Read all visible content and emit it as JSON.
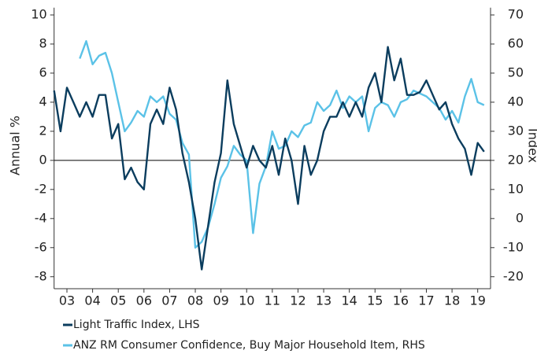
{
  "chart_data": {
    "type": "line",
    "ylabel": "Annual %",
    "y2label": "Index",
    "xlim": [
      3,
      20
    ],
    "xticks": [
      {
        "value": 3.5,
        "label": "03"
      },
      {
        "value": 4.5,
        "label": "04"
      },
      {
        "value": 5.5,
        "label": "05"
      },
      {
        "value": 6.5,
        "label": "06"
      },
      {
        "value": 7.5,
        "label": "07"
      },
      {
        "value": 8.5,
        "label": "08"
      },
      {
        "value": 9.5,
        "label": "09"
      },
      {
        "value": 10.5,
        "label": "10"
      },
      {
        "value": 11.5,
        "label": "11"
      },
      {
        "value": 12.5,
        "label": "12"
      },
      {
        "value": 13.5,
        "label": "13"
      },
      {
        "value": 14.5,
        "label": "14"
      },
      {
        "value": 15.5,
        "label": "15"
      },
      {
        "value": 16.5,
        "label": "16"
      },
      {
        "value": 17.5,
        "label": "17"
      },
      {
        "value": 18.5,
        "label": "18"
      },
      {
        "value": 19.5,
        "label": "19"
      }
    ],
    "ylim": [
      -8.5,
      10.5
    ],
    "yticks": [
      -8,
      -6,
      -4,
      -2,
      0,
      2,
      4,
      6,
      8,
      10
    ],
    "y2lim": [
      -22.5,
      72.5
    ],
    "y2ticks": [
      -20,
      -10,
      0,
      10,
      20,
      30,
      40,
      50,
      60,
      70
    ],
    "series": [
      {
        "name": "Light Traffic Index, LHS",
        "color": "#0b3d5e",
        "x": [
          3,
          3.25,
          3.5,
          3.75,
          4,
          4.25,
          4.5,
          4.75,
          5,
          5.25,
          5.5,
          5.75,
          6,
          6.25,
          6.5,
          6.75,
          7,
          7.25,
          7.5,
          7.75,
          8,
          8.25,
          8.5,
          8.75,
          9,
          9.25,
          9.5,
          9.75,
          10,
          10.25,
          10.5,
          10.75,
          11,
          11.25,
          11.5,
          11.75,
          12,
          12.25,
          12.5,
          12.75,
          13,
          13.25,
          13.5,
          13.75,
          14,
          14.25,
          14.5,
          14.75,
          15,
          15.25,
          15.5,
          15.75,
          16,
          16.25,
          16.5,
          16.75,
          17,
          17.25,
          17.5,
          17.75,
          18,
          18.25,
          18.5,
          18.75,
          19,
          19.25,
          19.5,
          19.75
        ],
        "values": [
          4.8,
          2.0,
          5.0,
          4.0,
          3.0,
          4.0,
          3.0,
          4.5,
          4.5,
          1.5,
          2.5,
          -1.3,
          -0.5,
          -1.5,
          -2.0,
          2.5,
          3.5,
          2.5,
          5.0,
          3.5,
          0.5,
          -1.5,
          -4.0,
          -7.5,
          -4.5,
          -1.5,
          0.5,
          5.5,
          2.5,
          1.0,
          -0.5,
          1.0,
          0.0,
          -0.5,
          1.0,
          -1.0,
          1.5,
          0.0,
          -3.0,
          1.0,
          -1.0,
          0.0,
          2.0,
          3.0,
          3.0,
          4.0,
          3.0,
          4.0,
          3.0,
          5.0,
          6.0,
          4.0,
          7.8,
          5.5,
          7.0,
          4.5,
          4.5,
          4.7,
          5.5,
          4.5,
          3.5,
          4.0,
          2.5,
          1.5,
          0.8,
          -1.0,
          1.2,
          0.6
        ]
      },
      {
        "name": "ANZ RM Consumer Confidence, Buy Major Household Item, RHS",
        "color": "#5bc2e7",
        "axis": "y2",
        "x": [
          4,
          4.25,
          4.5,
          4.75,
          5,
          5.25,
          5.5,
          5.75,
          6,
          6.25,
          6.5,
          6.75,
          7,
          7.25,
          7.5,
          7.75,
          8,
          8.25,
          8.5,
          8.75,
          9,
          9.25,
          9.5,
          9.75,
          10,
          10.25,
          10.5,
          10.75,
          11,
          11.25,
          11.5,
          11.75,
          12,
          12.25,
          12.5,
          12.75,
          13,
          13.25,
          13.5,
          13.75,
          14,
          14.25,
          14.5,
          14.75,
          15,
          15.25,
          15.5,
          15.75,
          16,
          16.25,
          16.5,
          16.75,
          17,
          17.25,
          17.5,
          17.75,
          18,
          18.25,
          18.5,
          18.75,
          19,
          19.25,
          19.5,
          19.75
        ],
        "values": [
          55,
          61,
          53,
          56,
          57,
          50,
          40,
          30,
          33,
          37,
          35,
          42,
          40,
          42,
          36,
          34,
          26,
          22,
          -10,
          -8,
          -3,
          5,
          14,
          18,
          25,
          22,
          20,
          -5,
          12,
          18,
          30,
          24,
          25,
          30,
          28,
          32,
          33,
          40,
          37,
          39,
          44,
          38,
          42,
          40,
          42,
          30,
          38,
          40,
          39,
          35,
          40,
          41,
          44,
          43,
          42,
          40,
          38,
          34,
          37,
          33,
          42,
          48,
          40,
          39
        ]
      }
    ]
  }
}
